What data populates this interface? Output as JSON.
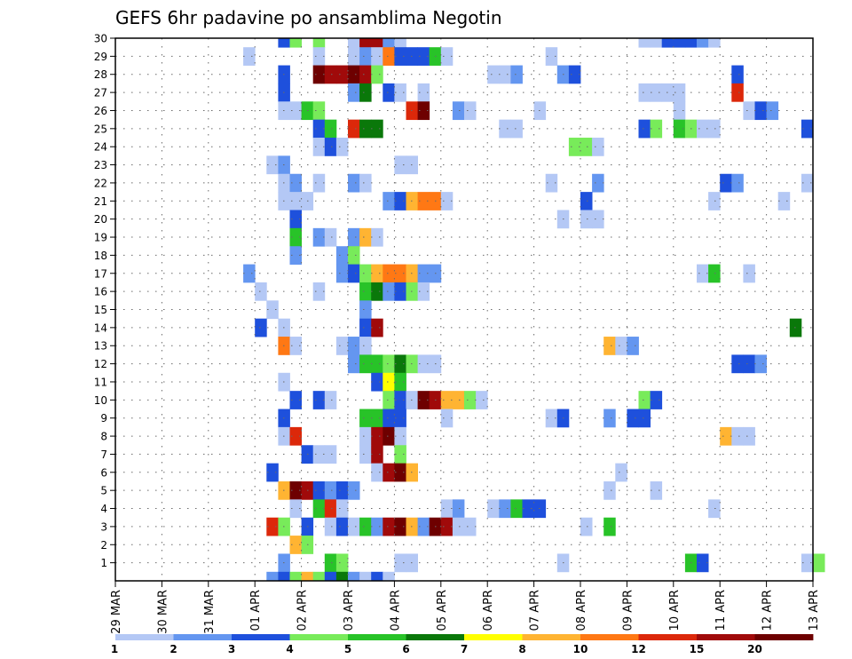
{
  "chart_data": {
    "type": "heatmap",
    "title": "GEFS 6hr padavine po ansamblima Negotin",
    "xlabel": "",
    "ylabel": "",
    "x_tick_labels": [
      "29 MAR",
      "30 MAR",
      "31 MAR",
      "01 APR",
      "02 APR",
      "03 APR",
      "04 APR",
      "05 APR",
      "06 APR",
      "07 APR",
      "08 APR",
      "09 APR",
      "10 APR",
      "11 APR",
      "12 APR",
      "13 APR"
    ],
    "y_tick_labels": [
      "1",
      "2",
      "3",
      "4",
      "5",
      "6",
      "7",
      "8",
      "9",
      "10",
      "11",
      "12",
      "13",
      "14",
      "15",
      "16",
      "17",
      "18",
      "19",
      "20",
      "21",
      "22",
      "23",
      "24",
      "25",
      "26",
      "27",
      "28",
      "29",
      "30"
    ],
    "y_range": [
      0,
      30
    ],
    "x_range_days": [
      "29 MAR",
      "13 APR"
    ],
    "time_step": "6hr",
    "grid": "dotted",
    "colorbar": {
      "levels": [
        "1",
        "2",
        "3",
        "4",
        "5",
        "6",
        "7",
        "8",
        "10",
        "12",
        "15",
        "20"
      ],
      "colors": [
        "#b4c8f5",
        "#6496f0",
        "#1e50dc",
        "#78eb5a",
        "#28c328",
        "#0a780a",
        "#ffff00",
        "#ffb432",
        "#ff7814",
        "#dc280a",
        "#a00a0a",
        "#6e0000"
      ]
    },
    "cells": [
      [
        30,
        14,
        3
      ],
      [
        30,
        15,
        4
      ],
      [
        30,
        17,
        4
      ],
      [
        30,
        20,
        1
      ],
      [
        30,
        21,
        11
      ],
      [
        30,
        22,
        11
      ],
      [
        30,
        23,
        2
      ],
      [
        30,
        24,
        1
      ],
      [
        30,
        45,
        1
      ],
      [
        30,
        46,
        1
      ],
      [
        30,
        47,
        3
      ],
      [
        30,
        48,
        3
      ],
      [
        30,
        49,
        3
      ],
      [
        30,
        50,
        2
      ],
      [
        30,
        51,
        1
      ],
      [
        29,
        11,
        1
      ],
      [
        29,
        17,
        1
      ],
      [
        29,
        20,
        1
      ],
      [
        29,
        21,
        2
      ],
      [
        29,
        22,
        1
      ],
      [
        29,
        23,
        9
      ],
      [
        29,
        24,
        3
      ],
      [
        29,
        25,
        3
      ],
      [
        29,
        26,
        3
      ],
      [
        29,
        27,
        5
      ],
      [
        29,
        28,
        1
      ],
      [
        29,
        37,
        1
      ],
      [
        28,
        14,
        3
      ],
      [
        28,
        17,
        12
      ],
      [
        28,
        18,
        11
      ],
      [
        28,
        19,
        11
      ],
      [
        28,
        20,
        12
      ],
      [
        28,
        21,
        11
      ],
      [
        28,
        22,
        4
      ],
      [
        28,
        32,
        1
      ],
      [
        28,
        33,
        1
      ],
      [
        28,
        34,
        2
      ],
      [
        28,
        38,
        2
      ],
      [
        28,
        39,
        3
      ],
      [
        28,
        53,
        3
      ],
      [
        27,
        14,
        3
      ],
      [
        27,
        20,
        2
      ],
      [
        27,
        21,
        6
      ],
      [
        27,
        23,
        3
      ],
      [
        27,
        24,
        1
      ],
      [
        27,
        26,
        1
      ],
      [
        27,
        45,
        1
      ],
      [
        27,
        46,
        1
      ],
      [
        27,
        47,
        1
      ],
      [
        27,
        48,
        1
      ],
      [
        27,
        53,
        10
      ],
      [
        26,
        14,
        1
      ],
      [
        26,
        15,
        1
      ],
      [
        26,
        16,
        5
      ],
      [
        26,
        17,
        4
      ],
      [
        26,
        25,
        10
      ],
      [
        26,
        26,
        12
      ],
      [
        26,
        29,
        2
      ],
      [
        26,
        30,
        1
      ],
      [
        26,
        36,
        1
      ],
      [
        26,
        48,
        1
      ],
      [
        26,
        54,
        1
      ],
      [
        26,
        55,
        3
      ],
      [
        26,
        56,
        2
      ],
      [
        25,
        17,
        3
      ],
      [
        25,
        18,
        5
      ],
      [
        25,
        20,
        10
      ],
      [
        25,
        21,
        6
      ],
      [
        25,
        22,
        6
      ],
      [
        25,
        33,
        1
      ],
      [
        25,
        34,
        1
      ],
      [
        25,
        45,
        3
      ],
      [
        25,
        46,
        4
      ],
      [
        25,
        48,
        5
      ],
      [
        25,
        49,
        4
      ],
      [
        25,
        50,
        1
      ],
      [
        25,
        51,
        1
      ],
      [
        25,
        59,
        3
      ],
      [
        24,
        17,
        1
      ],
      [
        24,
        18,
        3
      ],
      [
        24,
        19,
        1
      ],
      [
        24,
        39,
        4
      ],
      [
        24,
        40,
        4
      ],
      [
        24,
        41,
        1
      ],
      [
        23,
        13,
        1
      ],
      [
        23,
        14,
        2
      ],
      [
        23,
        24,
        1
      ],
      [
        23,
        25,
        1
      ],
      [
        22,
        14,
        1
      ],
      [
        22,
        15,
        2
      ],
      [
        22,
        17,
        1
      ],
      [
        22,
        20,
        2
      ],
      [
        22,
        21,
        1
      ],
      [
        22,
        37,
        1
      ],
      [
        22,
        41,
        2
      ],
      [
        22,
        52,
        3
      ],
      [
        22,
        53,
        2
      ],
      [
        22,
        59,
        1
      ],
      [
        21,
        14,
        1
      ],
      [
        21,
        15,
        1
      ],
      [
        21,
        16,
        1
      ],
      [
        21,
        23,
        2
      ],
      [
        21,
        24,
        3
      ],
      [
        21,
        25,
        8
      ],
      [
        21,
        26,
        9
      ],
      [
        21,
        27,
        9
      ],
      [
        21,
        28,
        1
      ],
      [
        21,
        40,
        3
      ],
      [
        21,
        51,
        1
      ],
      [
        21,
        57,
        1
      ],
      [
        20,
        15,
        3
      ],
      [
        20,
        38,
        1
      ],
      [
        20,
        40,
        1
      ],
      [
        20,
        41,
        1
      ],
      [
        19,
        15,
        5
      ],
      [
        19,
        17,
        2
      ],
      [
        19,
        18,
        1
      ],
      [
        19,
        20,
        2
      ],
      [
        19,
        21,
        8
      ],
      [
        19,
        22,
        1
      ],
      [
        18,
        15,
        2
      ],
      [
        18,
        19,
        2
      ],
      [
        18,
        20,
        4
      ],
      [
        17,
        11,
        2
      ],
      [
        17,
        19,
        2
      ],
      [
        17,
        20,
        3
      ],
      [
        17,
        21,
        4
      ],
      [
        17,
        22,
        8
      ],
      [
        17,
        23,
        9
      ],
      [
        17,
        24,
        9
      ],
      [
        17,
        25,
        8
      ],
      [
        17,
        26,
        2
      ],
      [
        17,
        27,
        2
      ],
      [
        17,
        50,
        1
      ],
      [
        17,
        51,
        5
      ],
      [
        17,
        54,
        1
      ],
      [
        16,
        12,
        1
      ],
      [
        16,
        17,
        1
      ],
      [
        16,
        21,
        5
      ],
      [
        16,
        22,
        6
      ],
      [
        16,
        23,
        2
      ],
      [
        16,
        24,
        3
      ],
      [
        16,
        25,
        4
      ],
      [
        16,
        26,
        1
      ],
      [
        15,
        13,
        1
      ],
      [
        15,
        21,
        2
      ],
      [
        14,
        12,
        3
      ],
      [
        14,
        14,
        1
      ],
      [
        14,
        21,
        3
      ],
      [
        14,
        22,
        11
      ],
      [
        14,
        58,
        6
      ],
      [
        13,
        14,
        9
      ],
      [
        13,
        15,
        1
      ],
      [
        13,
        19,
        1
      ],
      [
        13,
        20,
        2
      ],
      [
        13,
        21,
        1
      ],
      [
        13,
        42,
        8
      ],
      [
        13,
        43,
        1
      ],
      [
        13,
        44,
        2
      ],
      [
        12,
        20,
        2
      ],
      [
        12,
        21,
        5
      ],
      [
        12,
        22,
        5
      ],
      [
        12,
        23,
        4
      ],
      [
        12,
        24,
        6
      ],
      [
        12,
        25,
        4
      ],
      [
        12,
        26,
        1
      ],
      [
        12,
        27,
        1
      ],
      [
        12,
        53,
        3
      ],
      [
        12,
        54,
        3
      ],
      [
        12,
        55,
        2
      ],
      [
        11,
        14,
        1
      ],
      [
        11,
        22,
        3
      ],
      [
        11,
        23,
        7
      ],
      [
        11,
        24,
        5
      ],
      [
        10,
        15,
        3
      ],
      [
        10,
        17,
        3
      ],
      [
        10,
        18,
        1
      ],
      [
        10,
        23,
        4
      ],
      [
        10,
        24,
        3
      ],
      [
        10,
        25,
        1
      ],
      [
        10,
        26,
        12
      ],
      [
        10,
        27,
        11
      ],
      [
        10,
        28,
        8
      ],
      [
        10,
        29,
        8
      ],
      [
        10,
        30,
        4
      ],
      [
        10,
        31,
        1
      ],
      [
        10,
        45,
        4
      ],
      [
        10,
        46,
        3
      ],
      [
        9,
        14,
        3
      ],
      [
        9,
        21,
        5
      ],
      [
        9,
        22,
        5
      ],
      [
        9,
        23,
        3
      ],
      [
        9,
        24,
        3
      ],
      [
        9,
        28,
        1
      ],
      [
        9,
        37,
        1
      ],
      [
        9,
        38,
        3
      ],
      [
        9,
        42,
        2
      ],
      [
        9,
        44,
        3
      ],
      [
        9,
        45,
        3
      ],
      [
        8,
        14,
        1
      ],
      [
        8,
        15,
        10
      ],
      [
        8,
        21,
        1
      ],
      [
        8,
        22,
        11
      ],
      [
        8,
        23,
        12
      ],
      [
        8,
        24,
        1
      ],
      [
        8,
        52,
        8
      ],
      [
        8,
        53,
        1
      ],
      [
        8,
        54,
        1
      ],
      [
        7,
        16,
        3
      ],
      [
        7,
        17,
        1
      ],
      [
        7,
        18,
        1
      ],
      [
        7,
        21,
        1
      ],
      [
        7,
        22,
        11
      ],
      [
        7,
        24,
        4
      ],
      [
        6,
        13,
        3
      ],
      [
        6,
        22,
        1
      ],
      [
        6,
        23,
        11
      ],
      [
        6,
        24,
        12
      ],
      [
        6,
        25,
        8
      ],
      [
        6,
        43,
        1
      ],
      [
        5,
        14,
        8
      ],
      [
        5,
        15,
        12
      ],
      [
        5,
        16,
        11
      ],
      [
        5,
        17,
        3
      ],
      [
        5,
        18,
        2
      ],
      [
        5,
        19,
        3
      ],
      [
        5,
        20,
        2
      ],
      [
        5,
        42,
        1
      ],
      [
        5,
        46,
        1
      ],
      [
        4,
        15,
        1
      ],
      [
        4,
        17,
        5
      ],
      [
        4,
        18,
        10
      ],
      [
        4,
        19,
        1
      ],
      [
        4,
        28,
        1
      ],
      [
        4,
        29,
        2
      ],
      [
        4,
        32,
        1
      ],
      [
        4,
        33,
        2
      ],
      [
        4,
        34,
        5
      ],
      [
        4,
        35,
        3
      ],
      [
        4,
        36,
        3
      ],
      [
        4,
        51,
        1
      ],
      [
        3,
        13,
        10
      ],
      [
        3,
        14,
        4
      ],
      [
        3,
        16,
        3
      ],
      [
        3,
        18,
        1
      ],
      [
        3,
        19,
        3
      ],
      [
        3,
        20,
        1
      ],
      [
        3,
        21,
        5
      ],
      [
        3,
        22,
        2
      ],
      [
        3,
        23,
        11
      ],
      [
        3,
        24,
        12
      ],
      [
        3,
        25,
        8
      ],
      [
        3,
        26,
        2
      ],
      [
        3,
        27,
        12
      ],
      [
        3,
        28,
        11
      ],
      [
        3,
        29,
        1
      ],
      [
        3,
        30,
        1
      ],
      [
        3,
        40,
        1
      ],
      [
        3,
        42,
        5
      ],
      [
        2,
        15,
        8
      ],
      [
        2,
        16,
        4
      ],
      [
        1,
        14,
        2
      ],
      [
        1,
        18,
        5
      ],
      [
        1,
        19,
        4
      ],
      [
        1,
        24,
        1
      ],
      [
        1,
        25,
        1
      ],
      [
        1,
        38,
        1
      ],
      [
        1,
        49,
        5
      ],
      [
        1,
        50,
        3
      ],
      [
        1,
        59,
        1
      ],
      [
        1,
        60,
        4
      ],
      [
        0,
        13,
        2
      ],
      [
        0,
        14,
        3
      ],
      [
        0,
        15,
        4
      ],
      [
        0,
        16,
        8
      ],
      [
        0,
        17,
        4
      ],
      [
        0,
        18,
        3
      ],
      [
        0,
        19,
        6
      ],
      [
        0,
        20,
        2
      ],
      [
        0,
        21,
        1
      ],
      [
        0,
        22,
        3
      ],
      [
        0,
        23,
        1
      ]
    ]
  }
}
